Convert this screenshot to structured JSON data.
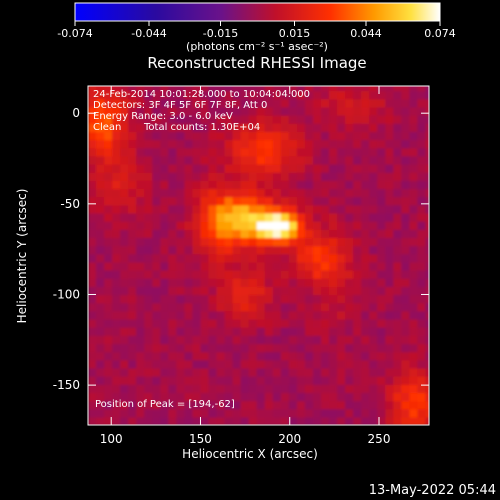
{
  "chart_data": {
    "type": "heatmap",
    "title": "Reconstructed RHESSI Image",
    "xlabel": "Heliocentric X (arcsec)",
    "ylabel": "Heliocentric Y (arcsec)",
    "xlim": [
      87,
      278
    ],
    "ylim": [
      -172,
      15
    ],
    "x_ticks": [
      100,
      150,
      200,
      250
    ],
    "y_ticks": [
      0,
      -50,
      -100,
      -150
    ],
    "grid": false,
    "colorbar": {
      "min": -0.074,
      "max": 0.074,
      "ticks": [
        "-0.074",
        "-0.044",
        "-0.015",
        "0.015",
        "0.044",
        "0.074"
      ],
      "ticks_values": [
        -0.074,
        -0.044,
        -0.015,
        0.015,
        0.044,
        0.074
      ],
      "unit_label": "(photons cm⁻² s⁻¹ asec⁻²)",
      "colors": [
        "#0000ff",
        "#4b0082",
        "#800080",
        "#ff0000",
        "#ff8000",
        "#ffff00",
        "#ffffff"
      ]
    },
    "annotations": {
      "time_range": "24-Feb-2014 10:01:28.000 to 10:04:04.000",
      "detectors": "Detectors: 3F 4F 5F 6F 7F 8F, Att 0",
      "energy_range": "Energy Range: 3.0 - 6.0 keV",
      "method": "Clean",
      "total_counts": "Total counts: 1.30E+04",
      "peak": "Position of Peak = [194,-62]"
    },
    "peak_position": [
      194,
      -62
    ],
    "sources": [
      {
        "x": 194,
        "y": -62,
        "intensity": 0.074,
        "sigma_x": 9,
        "sigma_y": 6
      },
      {
        "x": 175,
        "y": -58,
        "intensity": 0.045,
        "sigma_x": 12,
        "sigma_y": 10
      },
      {
        "x": 185,
        "y": -20,
        "intensity": 0.03,
        "sigma_x": 14,
        "sigma_y": 10
      },
      {
        "x": 160,
        "y": -60,
        "intensity": 0.025,
        "sigma_x": 10,
        "sigma_y": 14
      },
      {
        "x": 215,
        "y": -80,
        "intensity": 0.025,
        "sigma_x": 10,
        "sigma_y": 10
      },
      {
        "x": 175,
        "y": -100,
        "intensity": 0.02,
        "sigma_x": 10,
        "sigma_y": 10
      },
      {
        "x": 95,
        "y": -5,
        "intensity": 0.035,
        "sigma_x": 10,
        "sigma_y": 14
      },
      {
        "x": 105,
        "y": -40,
        "intensity": 0.015,
        "sigma_x": 10,
        "sigma_y": 12
      },
      {
        "x": 270,
        "y": -160,
        "intensity": 0.03,
        "sigma_x": 10,
        "sigma_y": 12
      },
      {
        "x": 235,
        "y": 5,
        "intensity": 0.012,
        "sigma_x": 15,
        "sigma_y": 8
      },
      {
        "x": 225,
        "y": -90,
        "intensity": 0.01,
        "sigma_x": 8,
        "sigma_y": 20
      }
    ]
  },
  "footer": {
    "date": "13-May-2022 05:44"
  }
}
